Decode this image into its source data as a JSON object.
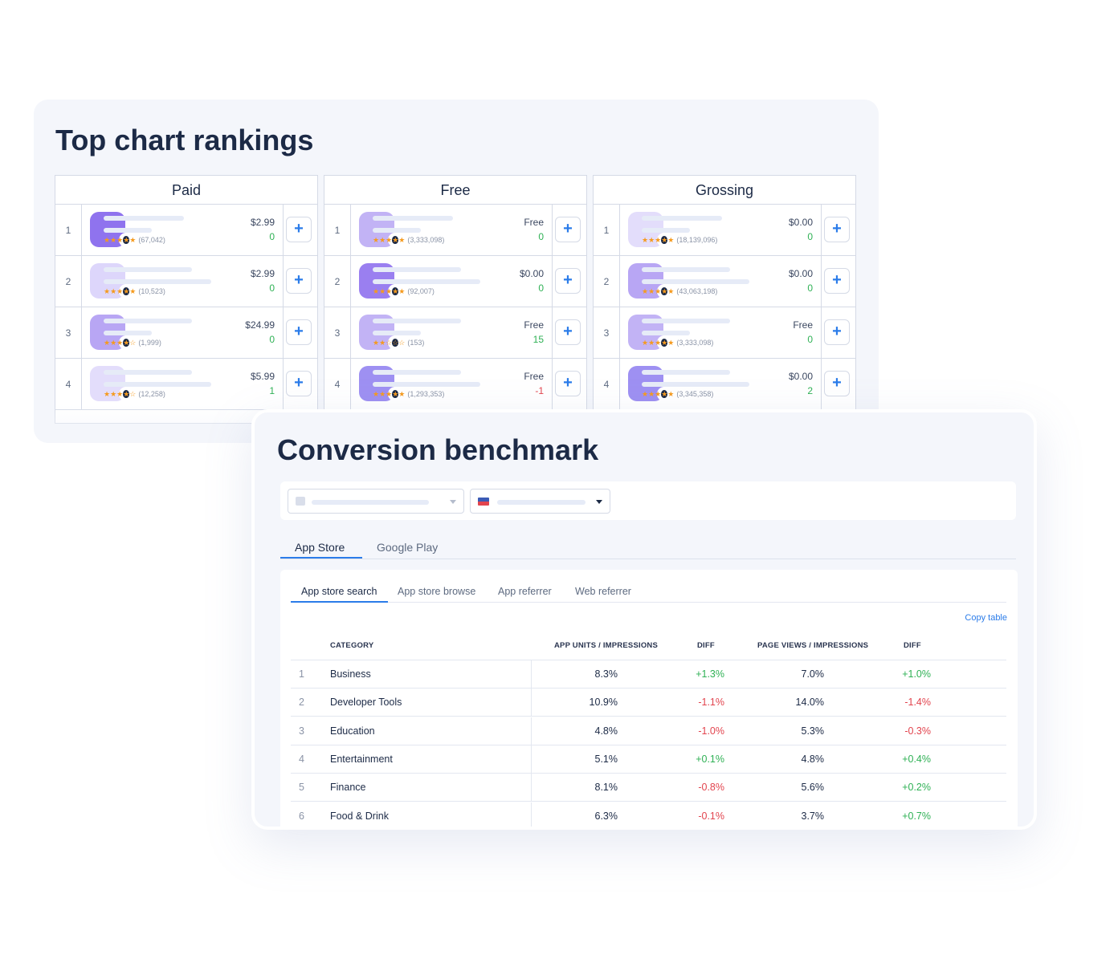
{
  "top_chart": {
    "title": "Top chart rankings",
    "columns": [
      {
        "name": "Paid",
        "rows": [
          {
            "rank": "1",
            "stars": "★★★★★",
            "reviews": "(67,042)",
            "price": "$2.99",
            "change": "0",
            "change_kind": "zero",
            "icon_color": "#8f73ee"
          },
          {
            "rank": "2",
            "stars": "★★★★★",
            "reviews": "(10,523)",
            "price": "$2.99",
            "change": "0",
            "change_kind": "zero",
            "icon_color": "#ddd6fb"
          },
          {
            "rank": "3",
            "stars": "★★★★☆",
            "reviews": "(1,999)",
            "price": "$24.99",
            "change": "0",
            "change_kind": "zero",
            "icon_color": "#b8a6f4"
          },
          {
            "rank": "4",
            "stars": "★★★★☆",
            "reviews": "(12,258)",
            "price": "$5.99",
            "change": "1",
            "change_kind": "pos",
            "icon_color": "#e3ddfb"
          }
        ]
      },
      {
        "name": "Free",
        "rows": [
          {
            "rank": "1",
            "stars": "★★★★★",
            "reviews": "(3,333,098)",
            "price": "Free",
            "change": "0",
            "change_kind": "zero",
            "icon_color": "#c2b3f5"
          },
          {
            "rank": "2",
            "stars": "★★★★★",
            "reviews": "(92,007)",
            "price": "$0.00",
            "change": "0",
            "change_kind": "zero",
            "icon_color": "#9a7ff0"
          },
          {
            "rank": "3",
            "stars": "★★☆☆☆",
            "reviews": "(153)",
            "price": "Free",
            "change": "15",
            "change_kind": "pos",
            "icon_color": "#c2b3f5"
          },
          {
            "rank": "4",
            "stars": "★★★★★",
            "reviews": "(1,293,353)",
            "price": "Free",
            "change": "-1",
            "change_kind": "neg",
            "icon_color": "#9e90f2"
          }
        ]
      },
      {
        "name": "Grossing",
        "rows": [
          {
            "rank": "1",
            "stars": "★★★★★",
            "reviews": "(18,139,096)",
            "price": "$0.00",
            "change": "0",
            "change_kind": "zero",
            "icon_color": "#e3ddfb"
          },
          {
            "rank": "2",
            "stars": "★★★★★",
            "reviews": "(43,063,198)",
            "price": "$0.00",
            "change": "0",
            "change_kind": "zero",
            "icon_color": "#b8a6f4"
          },
          {
            "rank": "3",
            "stars": "★★★★★",
            "reviews": "(3,333,098)",
            "price": "Free",
            "change": "0",
            "change_kind": "zero",
            "icon_color": "#c2b3f5"
          },
          {
            "rank": "4",
            "stars": "★★★★★",
            "reviews": "(3,345,358)",
            "price": "$0.00",
            "change": "2",
            "change_kind": "pos",
            "icon_color": "#9e90f2"
          }
        ]
      }
    ],
    "add_label": "+"
  },
  "conversion": {
    "title": "Conversion benchmark",
    "store_tabs": [
      "App Store",
      "Google Play"
    ],
    "sub_tabs": [
      "App store search",
      "App store browse",
      "App referrer",
      "Web referrer"
    ],
    "copy_label": "Copy table",
    "headers": {
      "category": "CATEGORY",
      "app_units": "APP UNITS / IMPRESSIONS",
      "diff1": "DIFF",
      "page_views": "PAGE VIEWS / IMPRESSIONS",
      "diff2": "DIFF"
    },
    "rows": [
      {
        "idx": "1",
        "category": "Business",
        "app": "8.3%",
        "diff1": "+1.3%",
        "page": "7.0%",
        "diff2": "+1.0%"
      },
      {
        "idx": "2",
        "category": "Developer Tools",
        "app": "10.9%",
        "diff1": "-1.1%",
        "page": "14.0%",
        "diff2": "-1.4%"
      },
      {
        "idx": "3",
        "category": "Education",
        "app": "4.8%",
        "diff1": "-1.0%",
        "page": "5.3%",
        "diff2": "-0.3%"
      },
      {
        "idx": "4",
        "category": "Entertainment",
        "app": "5.1%",
        "diff1": "+0.1%",
        "page": "4.8%",
        "diff2": "+0.4%"
      },
      {
        "idx": "5",
        "category": "Finance",
        "app": "8.1%",
        "diff1": "-0.8%",
        "page": "5.6%",
        "diff2": "+0.2%"
      },
      {
        "idx": "6",
        "category": "Food & Drink",
        "app": "6.3%",
        "diff1": "-0.1%",
        "page": "3.7%",
        "diff2": "+0.7%"
      }
    ]
  },
  "colors": {
    "accent": "#2b7ce9",
    "positive": "#2fb155",
    "negative": "#e2444e",
    "star": "#f59a1e"
  }
}
